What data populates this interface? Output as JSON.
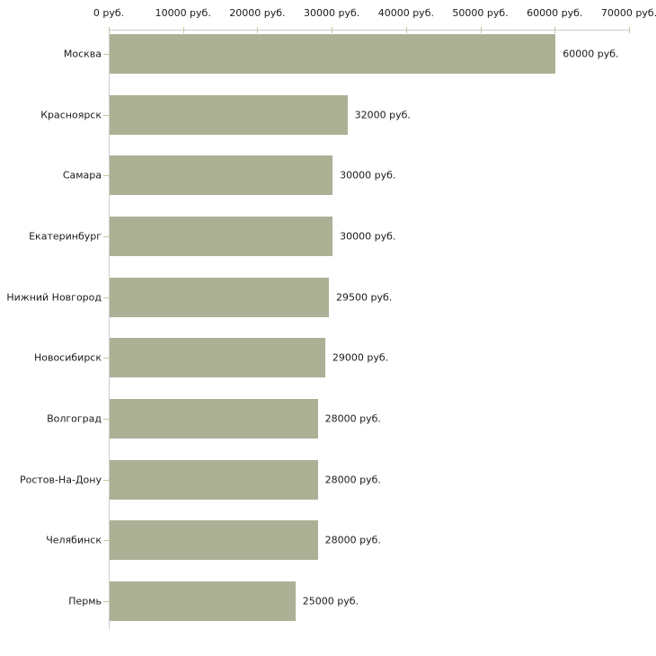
{
  "chart_data": {
    "type": "bar",
    "orientation": "horizontal",
    "title": "",
    "categories": [
      "Москва",
      "Красноярск",
      "Самара",
      "Екатеринбург",
      "Нижний Новгород",
      "Новосибирск",
      "Волгоград",
      "Ростов-На-Дону",
      "Челябинск",
      "Пермь"
    ],
    "values": [
      60000,
      32000,
      30000,
      30000,
      29500,
      29000,
      28000,
      28000,
      28000,
      25000
    ],
    "value_labels": [
      "60000 руб.",
      "32000 руб.",
      "30000 руб.",
      "30000 руб.",
      "29500 руб.",
      "29000 руб.",
      "28000 руб.",
      "28000 руб.",
      "28000 руб.",
      "25000 руб."
    ],
    "x_tick_values": [
      0,
      10000,
      20000,
      30000,
      40000,
      50000,
      60000,
      70000
    ],
    "x_tick_labels": [
      "0 руб.",
      "10000 руб.",
      "20000 руб.",
      "30000 руб.",
      "40000 руб.",
      "50000 руб.",
      "60000 руб.",
      "70000 руб."
    ],
    "xlim": [
      0,
      70000
    ],
    "xlabel": "",
    "ylabel": "",
    "axis_labels_position": "top",
    "grid": false,
    "legend": false,
    "colors": {
      "bar": "#acb196",
      "axis_line": "#cccccc",
      "tick_mark": "#c6c6a0",
      "text": "#1a1a1a",
      "background": "#ffffff"
    }
  }
}
